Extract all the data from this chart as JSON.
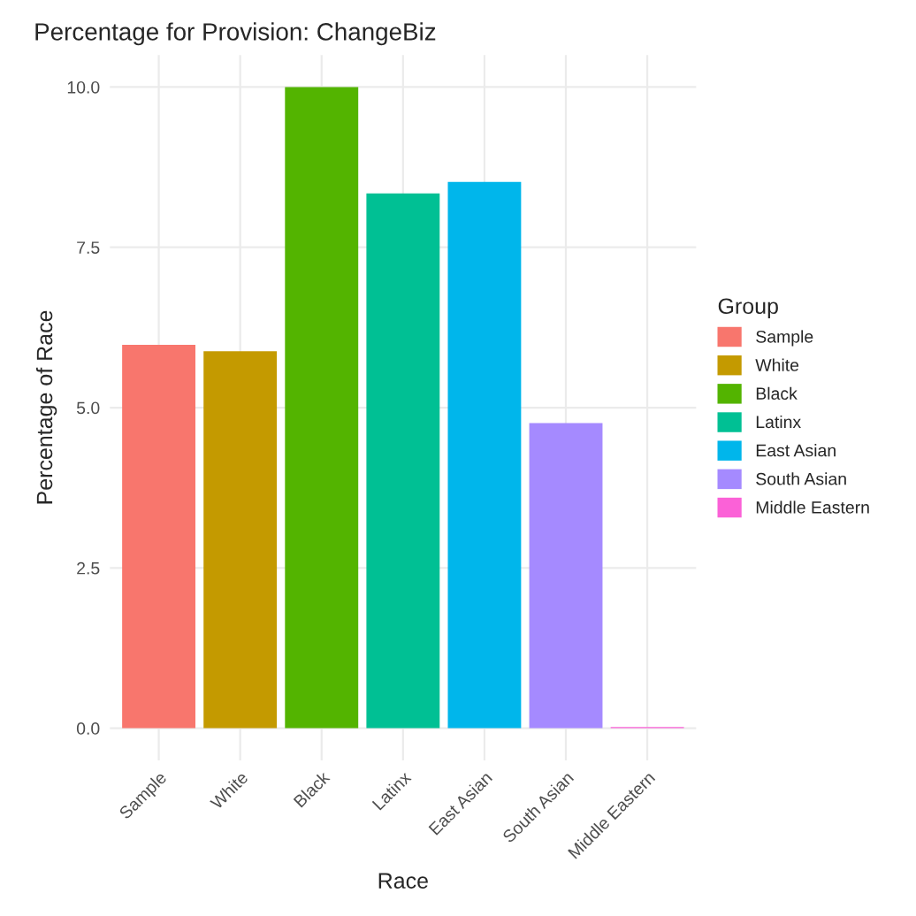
{
  "chart_data": {
    "type": "bar",
    "title": "Percentage for Provision: ChangeBiz",
    "xlabel": "Race",
    "ylabel": "Percentage of Race",
    "legend_title": "Group",
    "categories": [
      "Sample",
      "White",
      "Black",
      "Latinx",
      "East Asian",
      "South Asian",
      "Middle Eastern"
    ],
    "series": [
      {
        "name": "Sample",
        "color": "#f8766d",
        "values": [
          5.98,
          null,
          null,
          null,
          null,
          null,
          null
        ]
      },
      {
        "name": "White",
        "color": "#c49a00",
        "values": [
          null,
          5.88,
          null,
          null,
          null,
          null,
          null
        ]
      },
      {
        "name": "Black",
        "color": "#53b400",
        "values": [
          null,
          null,
          10.0,
          null,
          null,
          null,
          null
        ]
      },
      {
        "name": "Latinx",
        "color": "#00c094",
        "values": [
          null,
          null,
          null,
          8.34,
          null,
          null,
          null
        ]
      },
      {
        "name": "East Asian",
        "color": "#00b6eb",
        "values": [
          null,
          null,
          null,
          null,
          8.52,
          null,
          null
        ]
      },
      {
        "name": "South Asian",
        "color": "#a58aff",
        "values": [
          null,
          null,
          null,
          null,
          null,
          4.76,
          null
        ]
      },
      {
        "name": "Middle Eastern",
        "color": "#fb61d7",
        "values": [
          null,
          null,
          null,
          null,
          null,
          null,
          0.02
        ]
      }
    ],
    "ylim": [
      -0.5,
      10.5
    ],
    "yticks": [
      {
        "value": 0,
        "label": "0.0"
      },
      {
        "value": 2.5,
        "label": "2.5"
      },
      {
        "value": 5,
        "label": "5.0"
      },
      {
        "value": 7.5,
        "label": "7.5"
      },
      {
        "value": 10,
        "label": "10.0"
      }
    ],
    "grid": true,
    "legend": "right"
  }
}
